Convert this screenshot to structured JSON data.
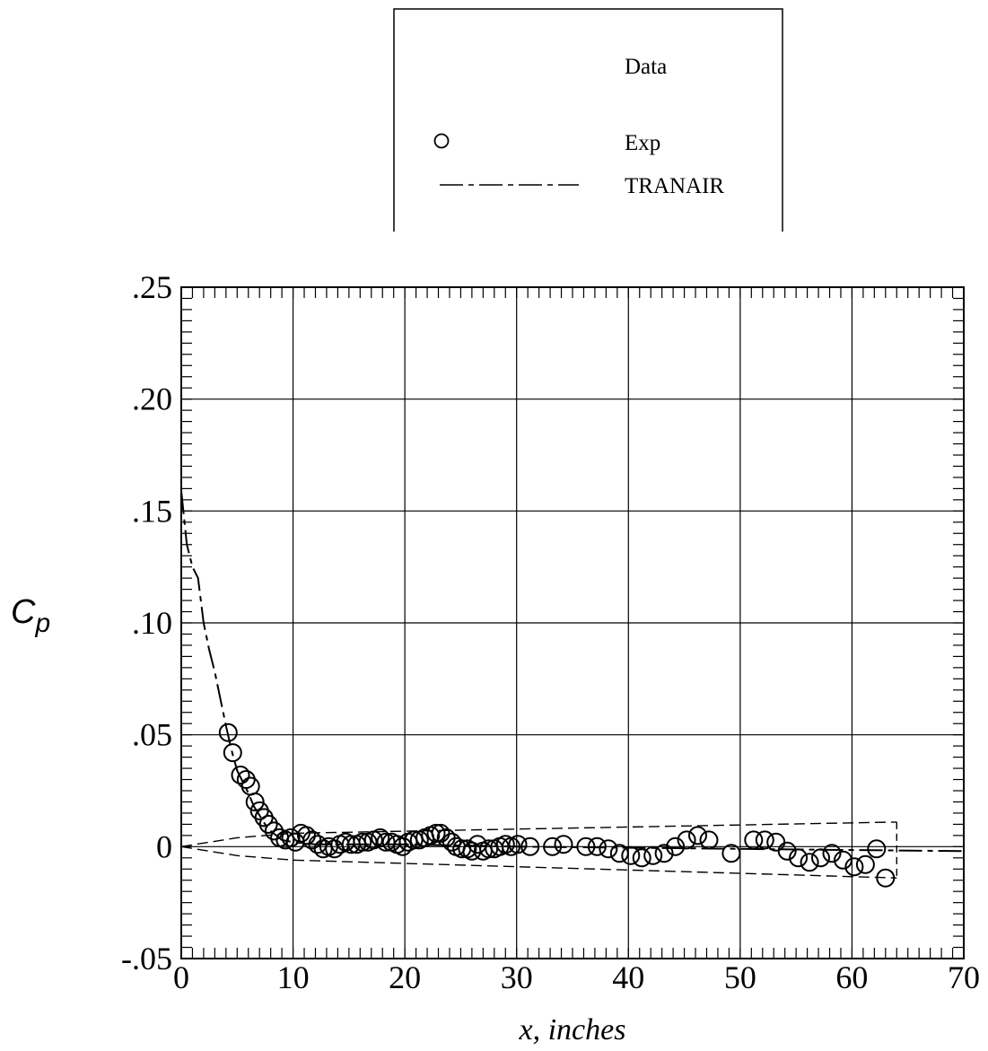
{
  "chart_data": {
    "type": "scatter",
    "title": "",
    "xlabel": "x, inches",
    "ylabel": "Cp",
    "ylabel_main": "C",
    "ylabel_sub": "p",
    "xlim": [
      0,
      70
    ],
    "ylim": [
      -0.05,
      0.25
    ],
    "grid": true,
    "x_ticks": [
      {
        "value": 0,
        "label": "0"
      },
      {
        "value": 10,
        "label": "10"
      },
      {
        "value": 20,
        "label": "20"
      },
      {
        "value": 30,
        "label": "30"
      },
      {
        "value": 40,
        "label": "40"
      },
      {
        "value": 50,
        "label": "50"
      },
      {
        "value": 60,
        "label": "60"
      },
      {
        "value": 70,
        "label": "70"
      }
    ],
    "y_ticks": [
      {
        "value": -0.05,
        "label": "-.05"
      },
      {
        "value": 0,
        "label": "0"
      },
      {
        "value": 0.05,
        "label": ".05"
      },
      {
        "value": 0.1,
        "label": ".10"
      },
      {
        "value": 0.15,
        "label": ".15"
      },
      {
        "value": 0.2,
        "label": ".20"
      },
      {
        "value": 0.25,
        "label": ".25"
      }
    ],
    "legend": {
      "title": "Data",
      "placement": "top",
      "entries": [
        {
          "name": "Exp",
          "marker": "circle"
        },
        {
          "name": "TRANAIR",
          "marker": "dash-line"
        }
      ]
    },
    "series": [
      {
        "name": "Exp",
        "kind": "scatter",
        "points": [
          [
            4.2,
            0.051
          ],
          [
            4.6,
            0.042
          ],
          [
            5.3,
            0.032
          ],
          [
            5.8,
            0.03
          ],
          [
            6.2,
            0.027
          ],
          [
            6.6,
            0.02
          ],
          [
            7.0,
            0.016
          ],
          [
            7.4,
            0.013
          ],
          [
            7.8,
            0.01
          ],
          [
            8.3,
            0.007
          ],
          [
            8.8,
            0.004
          ],
          [
            9.3,
            0.003
          ],
          [
            9.8,
            0.004
          ],
          [
            10.2,
            0.002
          ],
          [
            10.7,
            0.006
          ],
          [
            11.2,
            0.005
          ],
          [
            11.7,
            0.003
          ],
          [
            12.2,
            0.001
          ],
          [
            12.7,
            -0.001
          ],
          [
            13.2,
            0.0
          ],
          [
            13.7,
            -0.001
          ],
          [
            14.2,
            0.001
          ],
          [
            14.7,
            0.002
          ],
          [
            15.2,
            0.001
          ],
          [
            15.7,
            0.001
          ],
          [
            16.2,
            0.002
          ],
          [
            16.7,
            0.002
          ],
          [
            17.2,
            0.003
          ],
          [
            17.8,
            0.004
          ],
          [
            18.3,
            0.002
          ],
          [
            18.8,
            0.002
          ],
          [
            19.3,
            0.001
          ],
          [
            19.8,
            0.0
          ],
          [
            20.3,
            0.002
          ],
          [
            20.8,
            0.003
          ],
          [
            21.3,
            0.003
          ],
          [
            21.8,
            0.004
          ],
          [
            22.3,
            0.005
          ],
          [
            22.8,
            0.006
          ],
          [
            23.2,
            0.006
          ],
          [
            23.7,
            0.004
          ],
          [
            24.2,
            0.002
          ],
          [
            24.6,
            0.0
          ],
          [
            25.1,
            -0.001
          ],
          [
            25.6,
            -0.001
          ],
          [
            26.0,
            -0.002
          ],
          [
            26.5,
            0.001
          ],
          [
            27.0,
            -0.002
          ],
          [
            27.5,
            -0.001
          ],
          [
            28.0,
            -0.001
          ],
          [
            28.5,
            0.0
          ],
          [
            29.0,
            0.001
          ],
          [
            29.5,
            0.0
          ],
          [
            30.1,
            0.001
          ],
          [
            31.2,
            0.0
          ],
          [
            33.2,
            0.0
          ],
          [
            34.2,
            0.001
          ],
          [
            36.2,
            0.0
          ],
          [
            37.2,
            0.0
          ],
          [
            38.2,
            -0.001
          ],
          [
            39.2,
            -0.003
          ],
          [
            40.2,
            -0.004
          ],
          [
            41.2,
            -0.005
          ],
          [
            42.2,
            -0.004
          ],
          [
            43.2,
            -0.003
          ],
          [
            44.2,
            0.0
          ],
          [
            45.2,
            0.003
          ],
          [
            46.2,
            0.005
          ],
          [
            47.2,
            0.003
          ],
          [
            49.2,
            -0.003
          ],
          [
            51.2,
            0.003
          ],
          [
            52.2,
            0.003
          ],
          [
            53.2,
            0.002
          ],
          [
            54.2,
            -0.002
          ],
          [
            55.2,
            -0.005
          ],
          [
            56.2,
            -0.007
          ],
          [
            57.2,
            -0.005
          ],
          [
            58.2,
            -0.003
          ],
          [
            59.2,
            -0.006
          ],
          [
            60.2,
            -0.009
          ],
          [
            61.2,
            -0.008
          ],
          [
            62.2,
            -0.001
          ],
          [
            63.0,
            -0.014
          ]
        ]
      },
      {
        "name": "TRANAIR",
        "kind": "line",
        "style": "dash-dot",
        "points": [
          [
            0,
            0.159
          ],
          [
            0.5,
            0.135
          ],
          [
            1.0,
            0.125
          ],
          [
            1.5,
            0.12
          ],
          [
            2.0,
            0.1
          ],
          [
            2.5,
            0.088
          ],
          [
            3.0,
            0.078
          ],
          [
            3.5,
            0.066
          ],
          [
            4.0,
            0.054
          ],
          [
            4.5,
            0.043
          ],
          [
            5.0,
            0.034
          ],
          [
            5.5,
            0.029
          ],
          [
            6.0,
            0.024
          ],
          [
            6.5,
            0.018
          ],
          [
            7.0,
            0.014
          ],
          [
            7.5,
            0.01
          ],
          [
            8.0,
            0.007
          ],
          [
            8.5,
            0.005
          ],
          [
            9.0,
            0.003
          ],
          [
            10.0,
            0.002
          ],
          [
            12.0,
            0.001
          ],
          [
            15.0,
            0.001
          ],
          [
            20.0,
            0.001
          ],
          [
            30.0,
            0.0
          ],
          [
            50.0,
            -0.001
          ],
          [
            70.0,
            -0.002
          ]
        ]
      }
    ],
    "geometry_outline": {
      "upper": [
        [
          0,
          0.0
        ],
        [
          5,
          0.004
        ],
        [
          10,
          0.006
        ],
        [
          64,
          0.011
        ]
      ],
      "lower": [
        [
          0,
          0.0
        ],
        [
          5,
          -0.004
        ],
        [
          10,
          -0.006
        ],
        [
          64,
          -0.014
        ]
      ],
      "end": [
        [
          64,
          0.011
        ],
        [
          64,
          -0.014
        ]
      ]
    }
  }
}
